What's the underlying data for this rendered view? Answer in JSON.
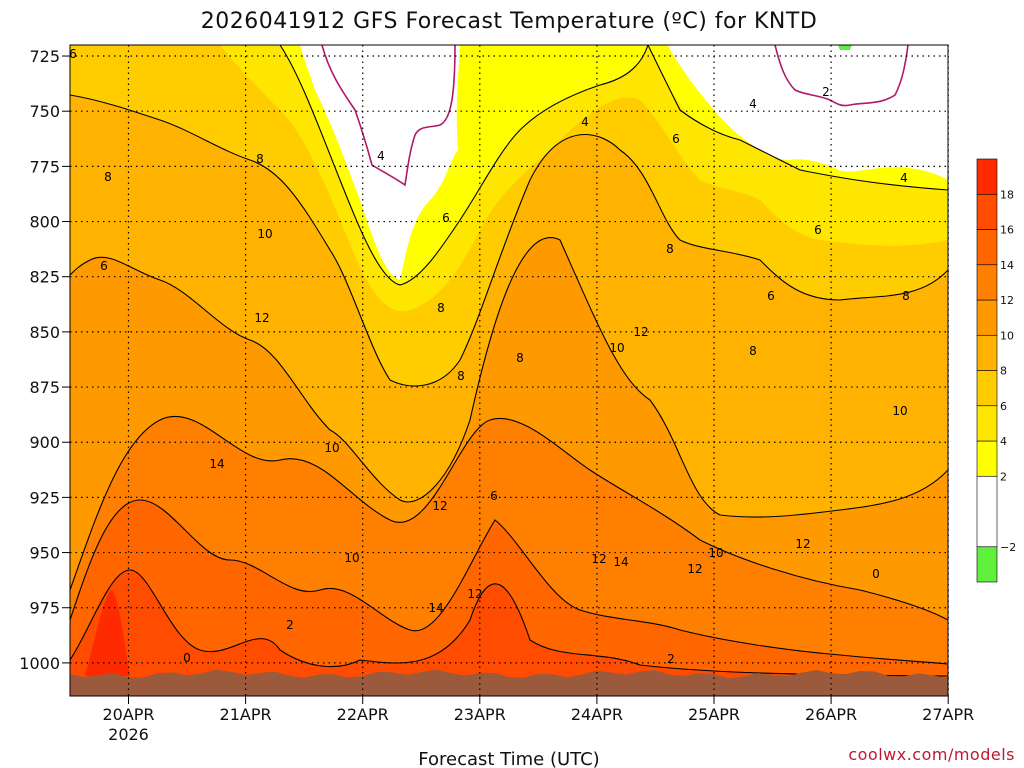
{
  "chart_data": {
    "type": "heatmap",
    "title": "2026041912 GFS Forecast Temperature (ºC) for KNTD",
    "xlabel": "Forecast Time (UTC)",
    "ylabel": "",
    "x_ticks": [
      "20APR",
      "21APR",
      "22APR",
      "23APR",
      "24APR",
      "25APR",
      "26APR",
      "27APR"
    ],
    "x_sub_label": "2026",
    "y_ticks": [
      "725",
      "750",
      "775",
      "800",
      "825",
      "850",
      "875",
      "900",
      "925",
      "950",
      "975",
      "1000"
    ],
    "y_values": [
      725,
      750,
      775,
      800,
      825,
      850,
      875,
      900,
      925,
      950,
      975,
      1000
    ],
    "ylim": [
      1015,
      720
    ],
    "grid": true,
    "colorbar": {
      "labels": [
        "18",
        "16",
        "14",
        "12",
        "10",
        "8",
        "6",
        "4",
        "2",
        "−2"
      ],
      "levels": [
        -4,
        -2,
        2,
        4,
        6,
        8,
        10,
        12,
        14,
        16,
        18,
        20
      ],
      "colors": [
        "#5ef03a",
        "#ffffff",
        "#ffff00",
        "#ffe600",
        "#ffcc00",
        "#ffb300",
        "#ff9900",
        "#ff7f00",
        "#ff6600",
        "#ff4c00",
        "#ff2a00"
      ]
    },
    "surface_color": "#9b5a3c",
    "freezing_contour_color": "#b0196b",
    "contour_labels": [
      "6",
      "8",
      "6",
      "8",
      "10",
      "12",
      "14",
      "0",
      "2",
      "4",
      "6",
      "8",
      "8",
      "10",
      "12",
      "14",
      "12",
      "10",
      "6",
      "4",
      "8",
      "10",
      "12",
      "12",
      "14",
      "2",
      "6",
      "8",
      "10",
      "12",
      "4",
      "6",
      "8",
      "10",
      "12",
      "0",
      "2",
      "4",
      "6",
      "8"
    ]
  },
  "footer": {
    "credit": "coolwx.com/models"
  }
}
